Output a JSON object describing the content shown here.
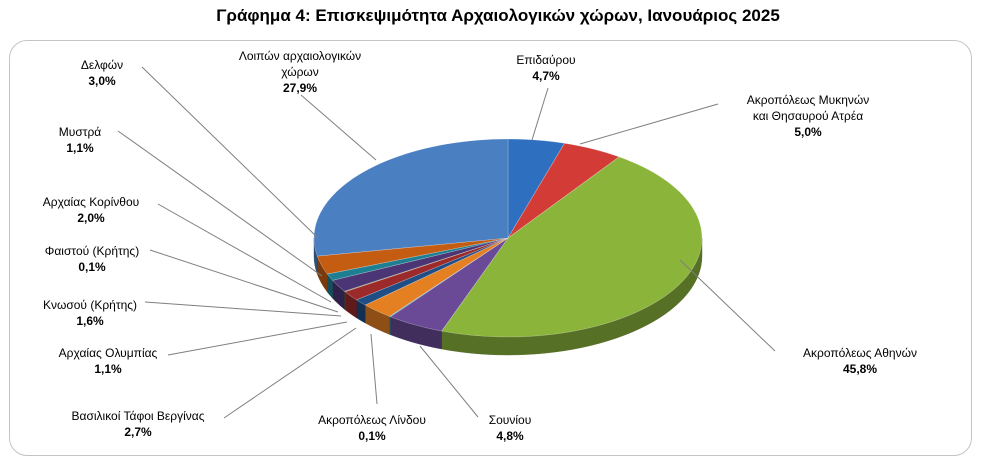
{
  "chart_data": {
    "type": "pie",
    "title": "Γράφημα 4: Επισκεψιμότητα Αρχαιολογικών χώρων, Ιανουάριος 2025",
    "legend": "none",
    "slices": [
      {
        "name": "Επιδαύρου",
        "value": 4.7,
        "label": "4,7%",
        "color": "#2e6fbf"
      },
      {
        "name": "Ακροπόλεως Μυκηνών και Θησαυρού Ατρέα",
        "value": 5.0,
        "label": "5,0%",
        "color": "#d23b36"
      },
      {
        "name": "Ακροπόλεως Αθηνών",
        "value": 45.8,
        "label": "45,8%",
        "color": "#8bb43b"
      },
      {
        "name": "Σουνίου",
        "value": 4.8,
        "label": "4,8%",
        "color": "#6a4a96"
      },
      {
        "name": "Ακροπόλεως Λίνδου",
        "value": 0.1,
        "label": "0,1%",
        "color": "#2c9bb3"
      },
      {
        "name": "Βασιλικοί Τάφοι Βεργίνας",
        "value": 2.7,
        "label": "2,7%",
        "color": "#e47f22"
      },
      {
        "name": "Αρχαίας Ολυμπίας",
        "value": 1.1,
        "label": "1,1%",
        "color": "#1f4e86"
      },
      {
        "name": "Κνωσού (Κρήτης)",
        "value": 1.6,
        "label": "1,6%",
        "color": "#9c2a2a"
      },
      {
        "name": "Φαιστού (Κρήτης)",
        "value": 0.1,
        "label": "0,1%",
        "color": "#5f7f2a"
      },
      {
        "name": "Αρχαίας Κορίνθου",
        "value": 2.0,
        "label": "2,0%",
        "color": "#4b3575"
      },
      {
        "name": "Μυστρά",
        "value": 1.1,
        "label": "1,1%",
        "color": "#1e7f92"
      },
      {
        "name": "Δελφών",
        "value": 3.0,
        "label": "3,0%",
        "color": "#c45d12"
      },
      {
        "name": "Λοιπών αρχαιολογικών χώρων",
        "value": 27.9,
        "label": "27,9%",
        "color": "#4a7fc1"
      }
    ]
  }
}
